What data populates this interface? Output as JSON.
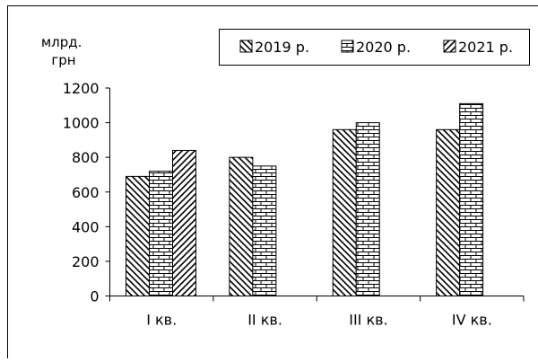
{
  "chart_data": {
    "type": "bar",
    "title": "",
    "ylabel": "млрд.\nгрн",
    "ylabel_lines": [
      "млрд.",
      "грн"
    ],
    "xlabel": "",
    "categories": [
      "I кв.",
      "II кв.",
      "III кв.",
      "IV кв."
    ],
    "series": [
      {
        "name": "2019 р.",
        "values": [
          690,
          800,
          960,
          960
        ],
        "pattern": "backslash-hatch"
      },
      {
        "name": "2020 р.",
        "values": [
          720,
          750,
          1000,
          1110
        ],
        "pattern": "brick"
      },
      {
        "name": "2021 р.",
        "values": [
          840,
          null,
          null,
          null
        ],
        "pattern": "slash-hatch"
      }
    ],
    "ylim": [
      0,
      1200
    ],
    "yticks": [
      0,
      200,
      400,
      600,
      800,
      1000,
      1200
    ],
    "grid": false,
    "legend_position": "top-right",
    "colors": {
      "ink": "#000000",
      "background": "#ffffff"
    }
  }
}
